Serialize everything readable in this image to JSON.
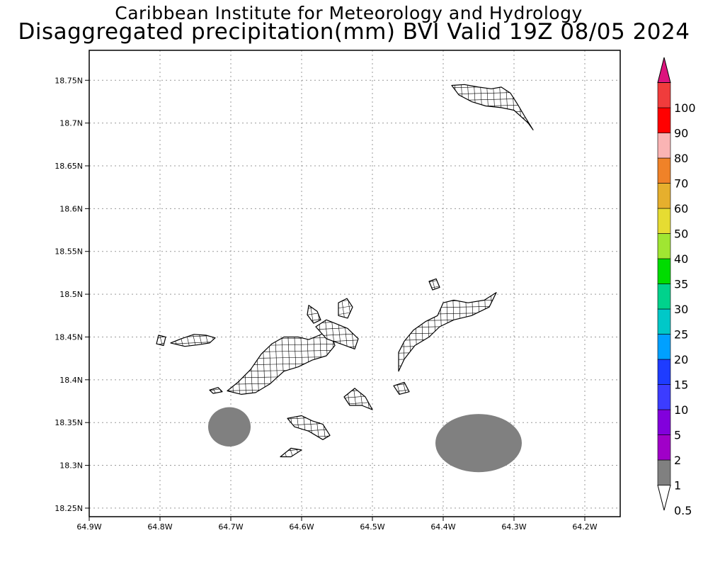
{
  "title": {
    "line1": "Caribbean Institute for Meteorology and Hydrology",
    "line2": "Disaggregated precipitation(mm) BVI Valid 19Z 08/05 2024"
  },
  "map": {
    "lon_range": [
      -64.9,
      -64.15
    ],
    "lat_range": [
      18.24,
      18.785
    ],
    "x_ticks": [
      {
        "lon": -64.9,
        "label": "64.9W"
      },
      {
        "lon": -64.8,
        "label": "64.8W"
      },
      {
        "lon": -64.7,
        "label": "64.7W"
      },
      {
        "lon": -64.6,
        "label": "64.6W"
      },
      {
        "lon": -64.5,
        "label": "64.5W"
      },
      {
        "lon": -64.4,
        "label": "64.4W"
      },
      {
        "lon": -64.3,
        "label": "64.3W"
      },
      {
        "lon": -64.2,
        "label": "64.2W"
      }
    ],
    "y_ticks": [
      {
        "lat": 18.25,
        "label": "18.25N"
      },
      {
        "lat": 18.3,
        "label": "18.3N"
      },
      {
        "lat": 18.35,
        "label": "18.35N"
      },
      {
        "lat": 18.4,
        "label": "18.4N"
      },
      {
        "lat": 18.45,
        "label": "18.45N"
      },
      {
        "lat": 18.5,
        "label": "18.5N"
      },
      {
        "lat": 18.55,
        "label": "18.55N"
      },
      {
        "lat": 18.6,
        "label": "18.6N"
      },
      {
        "lat": 18.65,
        "label": "18.65N"
      },
      {
        "lat": 18.7,
        "label": "18.7N"
      },
      {
        "lat": 18.75,
        "label": "18.75N"
      }
    ],
    "grid": true,
    "precip_areas": [
      {
        "center_lon": -64.702,
        "center_lat": 18.345,
        "radius_lon": 0.03,
        "radius_lat": 0.023,
        "color": "#808080"
      },
      {
        "center_lon": -64.35,
        "center_lat": 18.326,
        "radius_lon": 0.061,
        "radius_lat": 0.034,
        "color": "#808080"
      }
    ],
    "islands": [
      {
        "name": "Anegada",
        "points": [
          [
            -64.388,
            18.744
          ],
          [
            -64.37,
            18.745
          ],
          [
            -64.35,
            18.742
          ],
          [
            -64.332,
            18.74
          ],
          [
            -64.318,
            18.742
          ],
          [
            -64.305,
            18.735
          ],
          [
            -64.295,
            18.722
          ],
          [
            -64.285,
            18.708
          ],
          [
            -64.273,
            18.692
          ],
          [
            -64.28,
            18.7
          ],
          [
            -64.3,
            18.715
          ],
          [
            -64.318,
            18.718
          ],
          [
            -64.34,
            18.72
          ],
          [
            -64.36,
            18.725
          ],
          [
            -64.378,
            18.733
          ]
        ]
      },
      {
        "name": "Tortola",
        "points": [
          [
            -64.705,
            18.387
          ],
          [
            -64.69,
            18.397
          ],
          [
            -64.672,
            18.412
          ],
          [
            -64.657,
            18.43
          ],
          [
            -64.642,
            18.442
          ],
          [
            -64.625,
            18.45
          ],
          [
            -64.605,
            18.45
          ],
          [
            -64.59,
            18.447
          ],
          [
            -64.575,
            18.452
          ],
          [
            -64.56,
            18.458
          ],
          [
            -64.553,
            18.44
          ],
          [
            -64.565,
            18.428
          ],
          [
            -64.585,
            18.423
          ],
          [
            -64.605,
            18.415
          ],
          [
            -64.625,
            18.41
          ],
          [
            -64.645,
            18.395
          ],
          [
            -64.665,
            18.385
          ],
          [
            -64.685,
            18.383
          ]
        ]
      },
      {
        "name": "Jost Van Dyke",
        "points": [
          [
            -64.785,
            18.443
          ],
          [
            -64.77,
            18.448
          ],
          [
            -64.752,
            18.453
          ],
          [
            -64.735,
            18.452
          ],
          [
            -64.722,
            18.449
          ],
          [
            -64.73,
            18.443
          ],
          [
            -64.745,
            18.441
          ],
          [
            -64.765,
            18.439
          ]
        ]
      },
      {
        "name": "Virgin Gorda",
        "points": [
          [
            -64.463,
            18.432
          ],
          [
            -64.455,
            18.445
          ],
          [
            -64.442,
            18.458
          ],
          [
            -64.425,
            18.468
          ],
          [
            -64.408,
            18.475
          ],
          [
            -64.4,
            18.49
          ],
          [
            -64.385,
            18.493
          ],
          [
            -64.365,
            18.49
          ],
          [
            -64.342,
            18.493
          ],
          [
            -64.325,
            18.502
          ],
          [
            -64.335,
            18.485
          ],
          [
            -64.36,
            18.475
          ],
          [
            -64.385,
            18.47
          ],
          [
            -64.405,
            18.462
          ],
          [
            -64.42,
            18.45
          ],
          [
            -64.44,
            18.44
          ],
          [
            -64.455,
            18.424
          ],
          [
            -64.463,
            18.41
          ]
        ]
      },
      {
        "name": "Guana-Scrub",
        "points": [
          [
            -64.58,
            18.462
          ],
          [
            -64.565,
            18.47
          ],
          [
            -64.55,
            18.465
          ],
          [
            -64.535,
            18.46
          ],
          [
            -64.52,
            18.448
          ],
          [
            -64.525,
            18.436
          ],
          [
            -64.545,
            18.442
          ],
          [
            -64.565,
            18.448
          ]
        ]
      },
      {
        "name": "Great Camanoe",
        "points": [
          [
            -64.548,
            18.49
          ],
          [
            -64.536,
            18.495
          ],
          [
            -64.528,
            18.485
          ],
          [
            -64.535,
            18.472
          ],
          [
            -64.548,
            18.475
          ]
        ]
      },
      {
        "name": "Beef-north",
        "points": [
          [
            -64.59,
            18.487
          ],
          [
            -64.578,
            18.48
          ],
          [
            -64.573,
            18.47
          ],
          [
            -64.583,
            18.466
          ],
          [
            -64.592,
            18.476
          ]
        ]
      },
      {
        "name": "Norman-Peter",
        "points": [
          [
            -64.62,
            18.355
          ],
          [
            -64.6,
            18.358
          ],
          [
            -64.585,
            18.352
          ],
          [
            -64.57,
            18.348
          ],
          [
            -64.56,
            18.335
          ],
          [
            -64.57,
            18.33
          ],
          [
            -64.59,
            18.34
          ],
          [
            -64.61,
            18.345
          ]
        ]
      },
      {
        "name": "Salt-Cooper",
        "points": [
          [
            -64.63,
            18.31
          ],
          [
            -64.615,
            18.32
          ],
          [
            -64.6,
            18.318
          ],
          [
            -64.615,
            18.31
          ]
        ]
      },
      {
        "name": "Ginger",
        "points": [
          [
            -64.54,
            18.38
          ],
          [
            -64.525,
            18.39
          ],
          [
            -64.51,
            18.38
          ],
          [
            -64.5,
            18.365
          ],
          [
            -64.515,
            18.37
          ],
          [
            -64.532,
            18.37
          ]
        ]
      },
      {
        "name": "Fallen Jerusalem",
        "points": [
          [
            -64.47,
            18.393
          ],
          [
            -64.455,
            18.397
          ],
          [
            -64.448,
            18.386
          ],
          [
            -64.462,
            18.383
          ]
        ]
      },
      {
        "name": "Mosquito",
        "points": [
          [
            -64.42,
            18.515
          ],
          [
            -64.41,
            18.518
          ],
          [
            -64.405,
            18.508
          ],
          [
            -64.415,
            18.505
          ]
        ]
      },
      {
        "name": "Little Thatch",
        "points": [
          [
            -64.73,
            18.388
          ],
          [
            -64.718,
            18.391
          ],
          [
            -64.712,
            18.386
          ],
          [
            -64.725,
            18.384
          ]
        ]
      },
      {
        "name": "Sandy Cay",
        "points": [
          [
            -64.802,
            18.452
          ],
          [
            -64.792,
            18.45
          ],
          [
            -64.795,
            18.44
          ],
          [
            -64.805,
            18.442
          ]
        ]
      }
    ]
  },
  "colorbar": {
    "bins": [
      {
        "label": "0.5",
        "color": "#ffffff"
      },
      {
        "label": "1",
        "color": "#808080"
      },
      {
        "label": "2",
        "color": "#a000c8"
      },
      {
        "label": "5",
        "color": "#8200dc"
      },
      {
        "label": "10",
        "color": "#3c3cff"
      },
      {
        "label": "15",
        "color": "#1e3cff"
      },
      {
        "label": "20",
        "color": "#00a0ff"
      },
      {
        "label": "25",
        "color": "#00c8c8"
      },
      {
        "label": "30",
        "color": "#00d28c"
      },
      {
        "label": "35",
        "color": "#00dc00"
      },
      {
        "label": "40",
        "color": "#a0e632"
      },
      {
        "label": "50",
        "color": "#e6dc32"
      },
      {
        "label": "60",
        "color": "#e6af2d"
      },
      {
        "label": "70",
        "color": "#f08228"
      },
      {
        "label": "80",
        "color": "#fab4b4"
      },
      {
        "label": "90",
        "color": "#ff0000"
      },
      {
        "label": "100",
        "color": "#f03c3c"
      },
      {
        "label": "",
        "color": "#dc147d"
      }
    ]
  }
}
